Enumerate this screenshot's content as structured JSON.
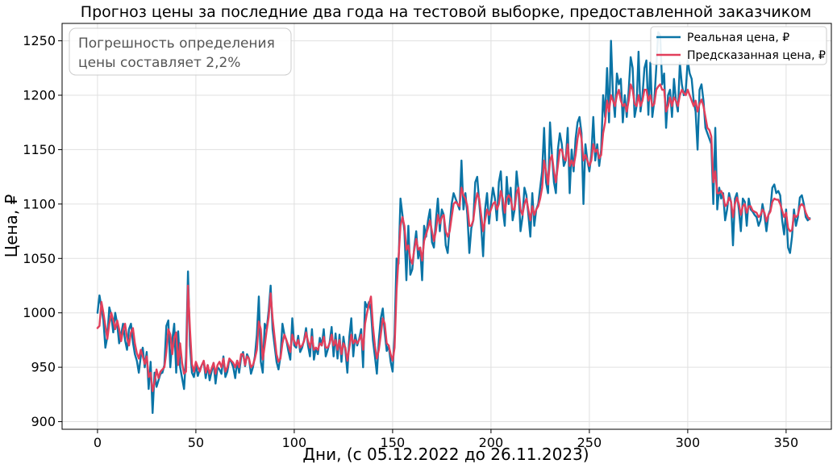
{
  "chart_data": {
    "type": "line",
    "title": "Прогноз цены за последние два года на тестовой выборке, предоставленной заказчиком",
    "xlabel": "Дни, (с 05.12.2022 до 26.11.2023)",
    "ylabel": "Цена, ₽",
    "xlim": [
      -18,
      373
    ],
    "ylim": [
      893,
      1266
    ],
    "xticks": [
      0,
      50,
      100,
      150,
      200,
      250,
      300,
      350
    ],
    "yticks": [
      900,
      950,
      1000,
      1050,
      1100,
      1150,
      1200,
      1250
    ],
    "grid": true,
    "legend": "top-right",
    "annotation_lines": [
      "Погрешность определения",
      "цены составляет 2,2%"
    ],
    "x_start": 0,
    "x_step": 1,
    "series": [
      {
        "name": "Реальная цена, ₽",
        "color": "#0a74a6",
        "values": [
          1000,
          1016,
          1005,
          993,
          968,
          978,
          1005,
          998,
          982,
          1000,
          990,
          972,
          980,
          990,
          975,
          966,
          985,
          990,
          973,
          962,
          956,
          945,
          960,
          968,
          950,
          964,
          930,
          955,
          908,
          945,
          932,
          938,
          944,
          945,
          952,
          988,
          993,
          950,
          975,
          990,
          945,
          983,
          950,
          940,
          930,
          960,
          1038,
          970,
          945,
          941,
          952,
          942,
          948,
          952,
          955,
          940,
          952,
          938,
          946,
          954,
          935,
          950,
          948,
          944,
          960,
          941,
          946,
          957,
          955,
          950,
          940,
          956,
          945,
          959,
          964,
          951,
          962,
          958,
          944,
          950,
          960,
          980,
          1015,
          955,
          945,
          990,
          985,
          1002,
          1025,
          985,
          970,
          955,
          948,
          960,
          990,
          980,
          975,
          965,
          957,
          995,
          970,
          968,
          979,
          964,
          968,
          975,
          986,
          970,
          960,
          985,
          957,
          968,
          962,
          977,
          970,
          985,
          960,
          966,
          973,
          987,
          960,
          981,
          958,
          980,
          955,
          978,
          965,
          945,
          978,
          995,
          960,
          980,
          970,
          976,
          985,
          950,
          1010,
          1005,
          1010,
          1002,
          975,
          960,
          944,
          975,
          995,
          1004,
          982,
          965,
          970,
          955,
          946,
          980,
          1050,
          1045,
          1105,
          1090,
          1075,
          1030,
          1080,
          1035,
          1040,
          1060,
          1075,
          1050,
          1060,
          1030,
          1080,
          1070,
          1085,
          1095,
          1065,
          1060,
          1085,
          1105,
          1075,
          1095,
          1090,
          1062,
          1055,
          1080,
          1100,
          1110,
          1105,
          1100,
          1095,
          1140,
          1095,
          1110,
          1090,
          1055,
          1078,
          1085,
          1120,
          1125,
          1102,
          1080,
          1052,
          1095,
          1110,
          1082,
          1100,
          1115,
          1105,
          1085,
          1120,
          1130,
          1095,
          1080,
          1125,
          1100,
          1115,
          1085,
          1095,
          1130,
          1112,
          1075,
          1088,
          1115,
          1108,
          1090,
          1070,
          1110,
          1080,
          1095,
          1100,
          1115,
          1130,
          1170,
          1120,
          1110,
          1175,
          1145,
          1120,
          1110,
          1150,
          1165,
          1155,
          1135,
          1140,
          1170,
          1110,
          1150,
          1130,
          1160,
          1175,
          1180,
          1165,
          1100,
          1155,
          1140,
          1130,
          1145,
          1180,
          1140,
          1155,
          1135,
          1150,
          1200,
          1180,
          1225,
          1175,
          1250,
          1200,
          1180,
          1220,
          1210,
          1215,
          1175,
          1200,
          1180,
          1205,
          1235,
          1225,
          1180,
          1190,
          1240,
          1185,
          1200,
          1225,
          1232,
          1182,
          1230,
          1180,
          1195,
          1225,
          1258,
          1255,
          1210,
          1220,
          1170,
          1200,
          1205,
          1180,
          1215,
          1195,
          1185,
          1230,
          1210,
          1200,
          1205,
          1232,
          1220,
          1215,
          1195,
          1185,
          1150,
          1205,
          1210,
          1195,
          1170,
          1165,
          1160,
          1155,
          1100,
          1170,
          1095,
          1115,
          1105,
          1110,
          1085,
          1095,
          1110,
          1102,
          1062,
          1105,
          1110,
          1095,
          1075,
          1105,
          1102,
          1080,
          1105,
          1095,
          1093,
          1090,
          1088,
          1080,
          1085,
          1100,
          1090,
          1075,
          1090,
          1095,
          1115,
          1118,
          1110,
          1112,
          1108,
          1085,
          1072,
          1095,
          1060,
          1055,
          1070,
          1095,
          1080,
          1088,
          1106,
          1108,
          1100,
          1088,
          1085,
          1087
        ]
      },
      {
        "name": "Предсказанная цена, ₽",
        "color": "#e23f5b",
        "values": [
          986,
          988,
          1010,
          1000,
          988,
          976,
          990,
          1000,
          993,
          985,
          993,
          985,
          974,
          984,
          990,
          977,
          970,
          982,
          986,
          972,
          963,
          958,
          966,
          960,
          953,
          960,
          941,
          945,
          928,
          936,
          948,
          940,
          946,
          948,
          950,
          964,
          985,
          980,
          962,
          977,
          982,
          952,
          972,
          954,
          944,
          946,
          1025,
          985,
          953,
          946,
          955,
          950,
          946,
          952,
          956,
          945,
          952,
          944,
          949,
          954,
          944,
          952,
          955,
          950,
          958,
          946,
          950,
          958,
          956,
          954,
          950,
          956,
          950,
          962,
          962,
          952,
          960,
          958,
          950,
          952,
          958,
          966,
          992,
          985,
          957,
          970,
          984,
          996,
          1018,
          995,
          978,
          962,
          955,
          958,
          972,
          980,
          975,
          970,
          964,
          980,
          974,
          970,
          975,
          968,
          970,
          974,
          982,
          974,
          968,
          978,
          966,
          968,
          966,
          972,
          970,
          978,
          968,
          968,
          972,
          980,
          970,
          975,
          966,
          975,
          962,
          972,
          968,
          956,
          968,
          980,
          972,
          975,
          972,
          975,
          980,
          966,
          990,
          1000,
          1008,
          1015,
          988,
          970,
          958,
          966,
          980,
          995,
          990,
          972,
          970,
          962,
          956,
          968,
          1020,
          1050,
          1080,
          1088,
          1080,
          1058,
          1062,
          1050,
          1045,
          1058,
          1068,
          1058,
          1060,
          1048,
          1066,
          1072,
          1078,
          1085,
          1075,
          1066,
          1075,
          1090,
          1082,
          1088,
          1090,
          1075,
          1070,
          1075,
          1088,
          1100,
          1102,
          1100,
          1098,
          1115,
          1108,
          1105,
          1098,
          1080,
          1080,
          1085,
          1100,
          1110,
          1105,
          1090,
          1075,
          1085,
          1095,
          1090,
          1095,
          1100,
          1102,
          1095,
          1100,
          1112,
          1105,
          1092,
          1105,
          1108,
          1105,
          1095,
          1095,
          1110,
          1115,
          1095,
          1090,
          1100,
          1105,
          1095,
          1085,
          1098,
          1090,
          1095,
          1098,
          1105,
          1115,
          1140,
          1130,
          1118,
          1140,
          1145,
          1130,
          1120,
          1135,
          1150,
          1150,
          1142,
          1140,
          1155,
          1135,
          1140,
          1135,
          1145,
          1160,
          1170,
          1160,
          1140,
          1145,
          1140,
          1135,
          1140,
          1155,
          1148,
          1150,
          1142,
          1145,
          1165,
          1175,
          1195,
          1185,
          1200,
          1195,
          1190,
          1200,
          1205,
          1195,
          1190,
          1192,
          1185,
          1195,
          1210,
          1205,
          1192,
          1190,
          1200,
          1190,
          1195,
          1205,
          1205,
          1195,
          1200,
          1190,
          1192,
          1205,
          1208,
          1210,
          1205,
          1205,
          1185,
          1190,
          1198,
          1190,
          1198,
          1195,
          1190,
          1200,
          1205,
          1202,
          1200,
          1205,
          1200,
          1195,
          1190,
          1195,
          1185,
          1192,
          1196,
          1190,
          1180,
          1170,
          1168,
          1162,
          1120,
          1130,
          1110,
          1110,
          1112,
          1108,
          1098,
          1100,
          1106,
          1102,
          1088,
          1100,
          1106,
          1100,
          1090,
          1098,
          1100,
          1092,
          1098,
          1098,
          1094,
          1093,
          1092,
          1088,
          1090,
          1095,
          1092,
          1084,
          1090,
          1093,
          1102,
          1105,
          1104,
          1104,
          1100,
          1094,
          1088,
          1092,
          1078,
          1075,
          1076,
          1090,
          1088,
          1090,
          1098,
          1100,
          1098,
          1092,
          1088,
          1086
        ]
      }
    ]
  }
}
